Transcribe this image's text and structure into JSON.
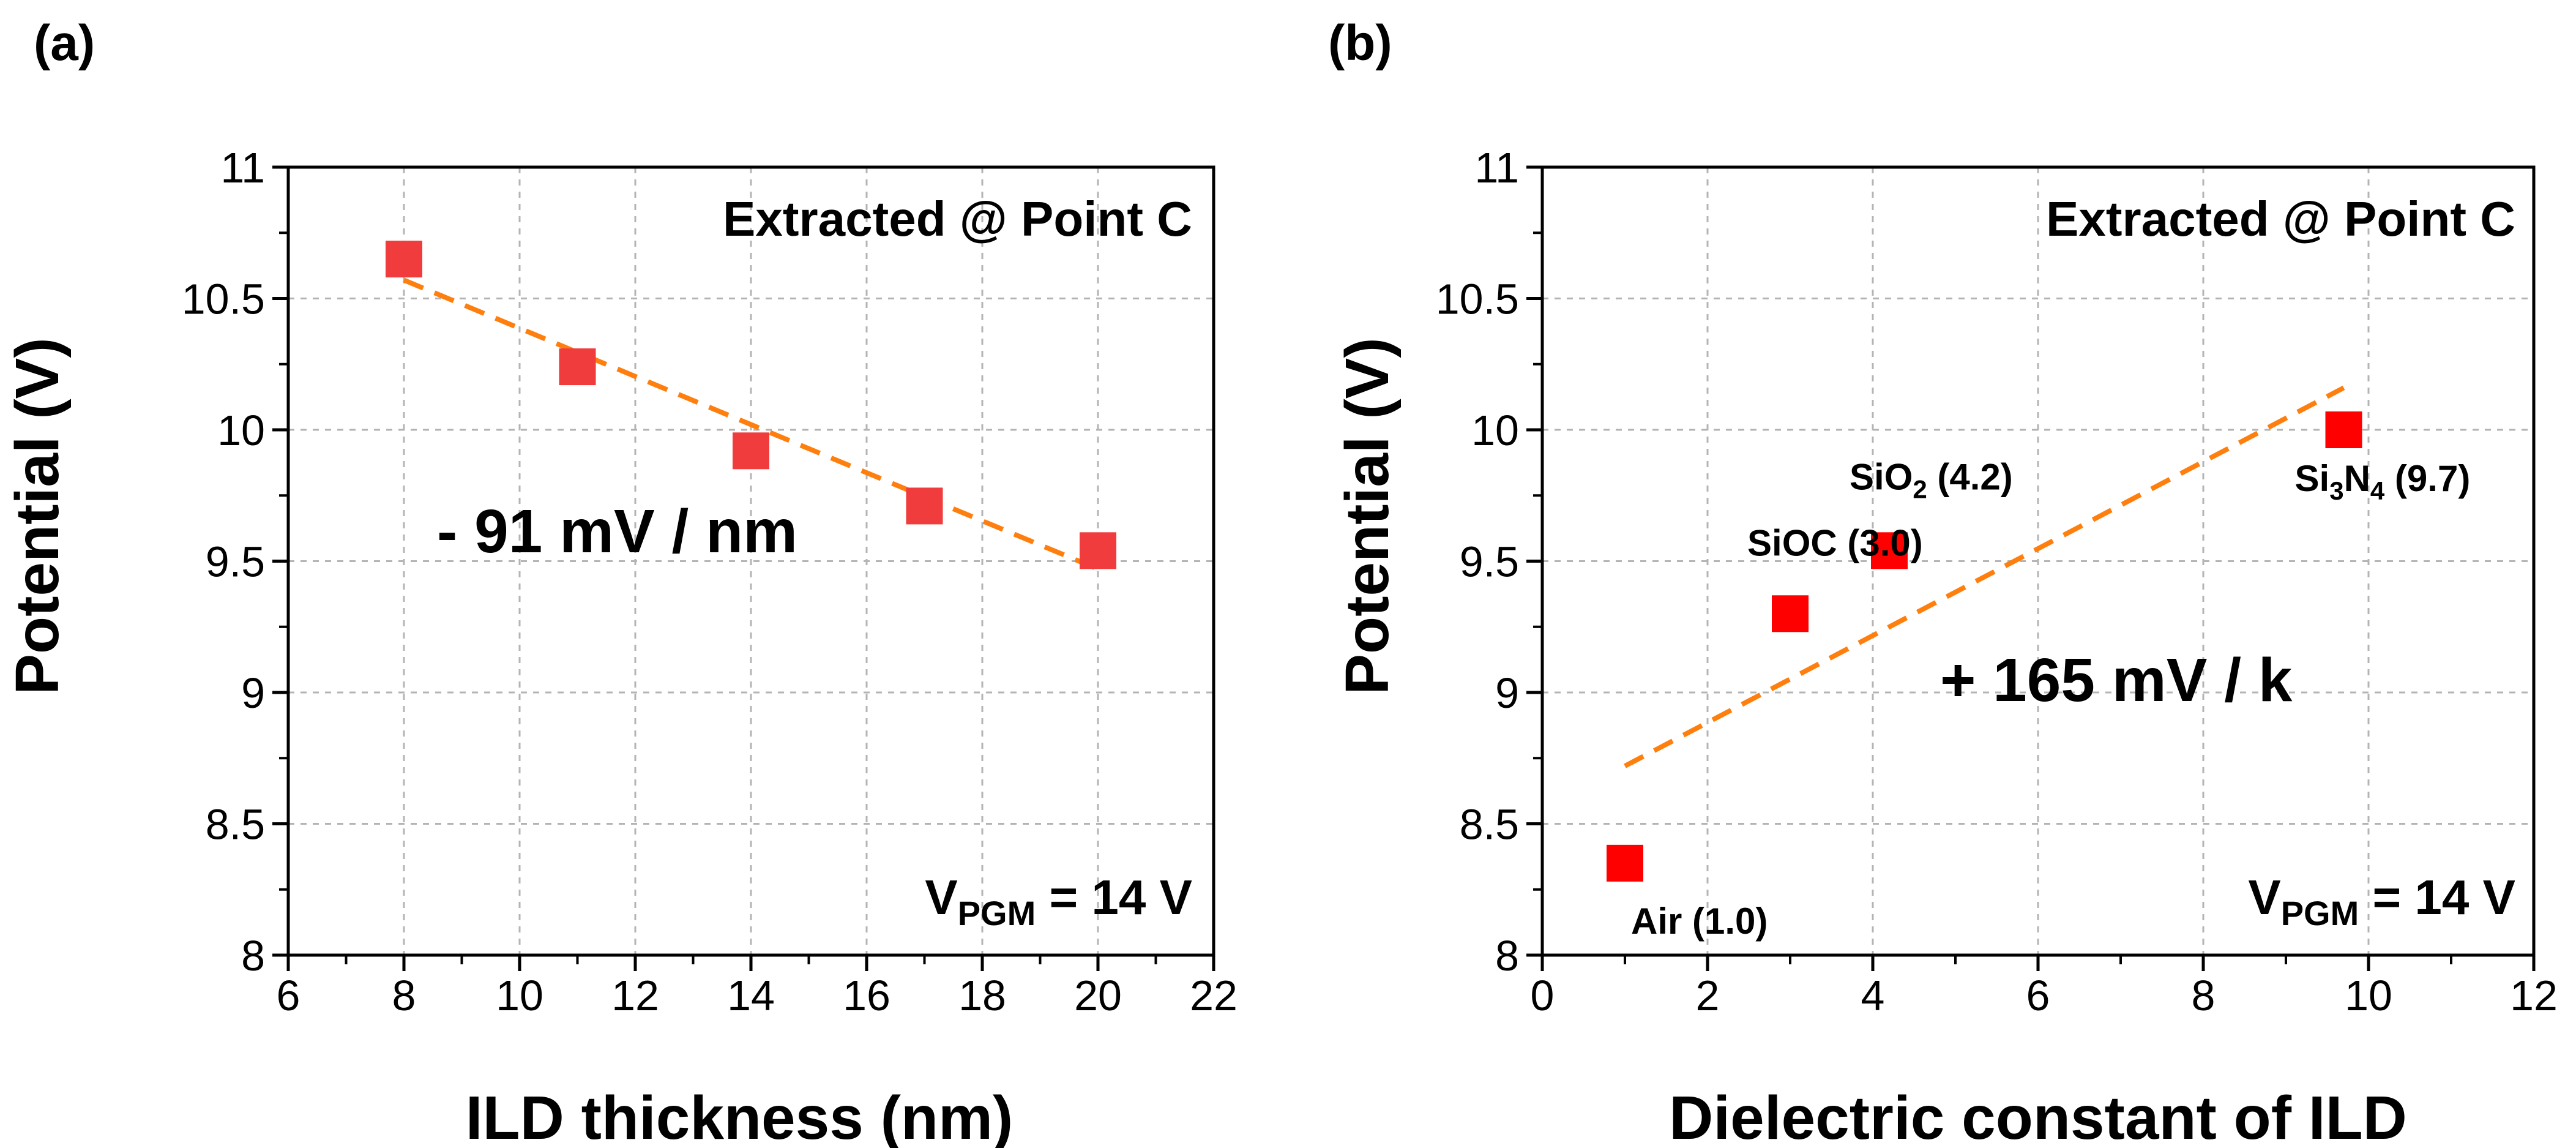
{
  "chart_data": [
    {
      "id": "a",
      "panel_label": "(a)",
      "type": "scatter",
      "title": "",
      "xlabel": "ILD thickness (nm)",
      "ylabel": "Potential (V)",
      "xlim": [
        6,
        22
      ],
      "ylim": [
        8,
        11
      ],
      "xticks": [
        6,
        8,
        10,
        12,
        14,
        16,
        18,
        20,
        22
      ],
      "yticks": [
        8,
        8.5,
        9,
        9.5,
        10,
        10.5,
        11
      ],
      "grid": true,
      "series": [
        {
          "name": "Potential",
          "color": "#f03c3c",
          "marker": "square",
          "x": [
            8,
            11,
            14,
            17,
            20
          ],
          "y": [
            10.65,
            10.24,
            9.92,
            9.71,
            9.54
          ]
        }
      ],
      "fit": {
        "color": "#ff7f0e",
        "x": [
          8,
          20
        ],
        "y": [
          10.57,
          9.47
        ]
      },
      "point_labels": [],
      "annotations": {
        "top": "Extracted @ Point C",
        "slope": "- 91 mV / nm",
        "vpgm_prefix": "V",
        "vpgm_sub": "PGM",
        "vpgm_suffix": " = 14 V"
      }
    },
    {
      "id": "b",
      "panel_label": "(b)",
      "type": "scatter",
      "title": "",
      "xlabel": "Dielectric constant of ILD",
      "ylabel": "Potential (V)",
      "xlim": [
        0,
        12
      ],
      "ylim": [
        8,
        11
      ],
      "xticks": [
        0,
        2,
        4,
        6,
        8,
        10,
        12
      ],
      "yticks": [
        8,
        8.5,
        9,
        9.5,
        10,
        10.5,
        11
      ],
      "grid": true,
      "series": [
        {
          "name": "Potential",
          "color": "#ff0000",
          "marker": "square",
          "x": [
            1.0,
            3.0,
            4.2,
            9.7
          ],
          "y": [
            8.35,
            9.3,
            9.54,
            10.0
          ]
        }
      ],
      "fit": {
        "color": "#ff7f0e",
        "x": [
          1.0,
          9.7
        ],
        "y": [
          8.72,
          10.16
        ]
      },
      "point_labels": [
        {
          "x": 1.0,
          "y": 8.35,
          "parts": [
            {
              "t": "Air (1.0)",
              "sub": false
            }
          ]
        },
        {
          "x": 3.0,
          "y": 9.3,
          "parts": [
            {
              "t": "SiOC (3.0)",
              "sub": false
            }
          ]
        },
        {
          "x": 4.2,
          "y": 9.54,
          "parts": [
            {
              "t": "SiO",
              "sub": false
            },
            {
              "t": "2",
              "sub": true
            },
            {
              "t": " (4.2)",
              "sub": false
            }
          ]
        },
        {
          "x": 9.7,
          "y": 10.0,
          "parts": [
            {
              "t": "Si",
              "sub": false
            },
            {
              "t": "3",
              "sub": true
            },
            {
              "t": "N",
              "sub": false
            },
            {
              "t": "4",
              "sub": true
            },
            {
              "t": " (9.7)",
              "sub": false
            }
          ]
        }
      ],
      "annotations": {
        "top": "Extracted @ Point C",
        "slope": "+ 165 mV / k",
        "vpgm_prefix": "V",
        "vpgm_sub": "PGM",
        "vpgm_suffix": " = 14 V"
      }
    }
  ]
}
